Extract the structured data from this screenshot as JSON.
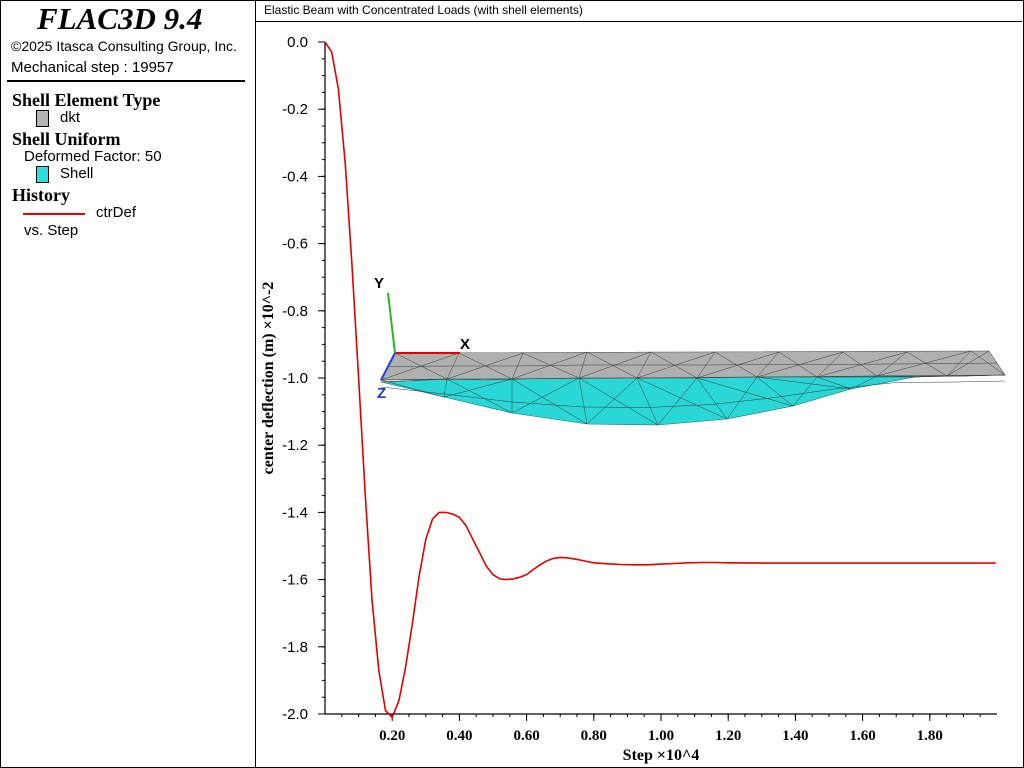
{
  "legend": {
    "app_name": "FLAC3D 9.4",
    "copyright": "©2025 Itasca Consulting Group, Inc.",
    "step_label": "Mechanical step : 19957",
    "shell_type_heading": "Shell Element Type",
    "shell_type_item": "dkt",
    "shell_type_color": "#b4b4b4",
    "uniform_heading": "Shell Uniform",
    "deformed_factor": "Deformed Factor: 50",
    "uniform_item": "Shell",
    "uniform_color": "#29e0e0",
    "history_heading": "History",
    "history_series": "ctrDef",
    "history_vs": "vs. Step"
  },
  "plot_title": "Elastic Beam with Concentrated Loads (with shell elements)",
  "axes_triad": {
    "x": "X",
    "y": "Y",
    "z": "Z"
  },
  "chart_data": {
    "type": "line",
    "title": "Elastic Beam with Concentrated Loads (with shell elements)",
    "xlabel": "Step ×10^4",
    "ylabel": "center deflection (m) ×10^-2",
    "xlim": [
      0,
      2.0
    ],
    "ylim": [
      -2.0,
      0.0
    ],
    "xticks": [
      "0.20",
      "0.40",
      "0.60",
      "0.80",
      "1.00",
      "1.20",
      "1.40",
      "1.60",
      "1.80"
    ],
    "yticks": [
      "0.0",
      "-0.2",
      "-0.4",
      "-0.6",
      "-0.8",
      "-1.0",
      "-1.2",
      "-1.4",
      "-1.6",
      "-1.8",
      "-2.0"
    ],
    "grid": false,
    "series": [
      {
        "name": "ctrDef",
        "color": "#e00000",
        "x": [
          0,
          0.02,
          0.04,
          0.06,
          0.08,
          0.1,
          0.12,
          0.14,
          0.16,
          0.18,
          0.2,
          0.22,
          0.24,
          0.26,
          0.28,
          0.3,
          0.32,
          0.34,
          0.36,
          0.38,
          0.4,
          0.42,
          0.44,
          0.46,
          0.48,
          0.5,
          0.52,
          0.54,
          0.56,
          0.58,
          0.6,
          0.62,
          0.64,
          0.66,
          0.68,
          0.7,
          0.72,
          0.74,
          0.76,
          0.78,
          0.8,
          0.84,
          0.88,
          0.92,
          0.96,
          1.0,
          1.04,
          1.08,
          1.12,
          1.16,
          1.2,
          1.3,
          1.4,
          1.6,
          1.8,
          1.996
        ],
        "y": [
          0.0,
          -0.03,
          -0.14,
          -0.36,
          -0.66,
          -1.0,
          -1.35,
          -1.66,
          -1.87,
          -1.99,
          -2.01,
          -1.96,
          -1.86,
          -1.73,
          -1.59,
          -1.48,
          -1.42,
          -1.4,
          -1.4,
          -1.405,
          -1.415,
          -1.44,
          -1.48,
          -1.52,
          -1.56,
          -1.585,
          -1.598,
          -1.6,
          -1.598,
          -1.593,
          -1.585,
          -1.57,
          -1.556,
          -1.544,
          -1.537,
          -1.534,
          -1.535,
          -1.538,
          -1.542,
          -1.546,
          -1.55,
          -1.553,
          -1.555,
          -1.556,
          -1.556,
          -1.554,
          -1.552,
          -1.55,
          -1.549,
          -1.549,
          -1.55,
          -1.551,
          -1.551,
          -1.551,
          -1.551,
          -1.551
        ]
      }
    ]
  }
}
